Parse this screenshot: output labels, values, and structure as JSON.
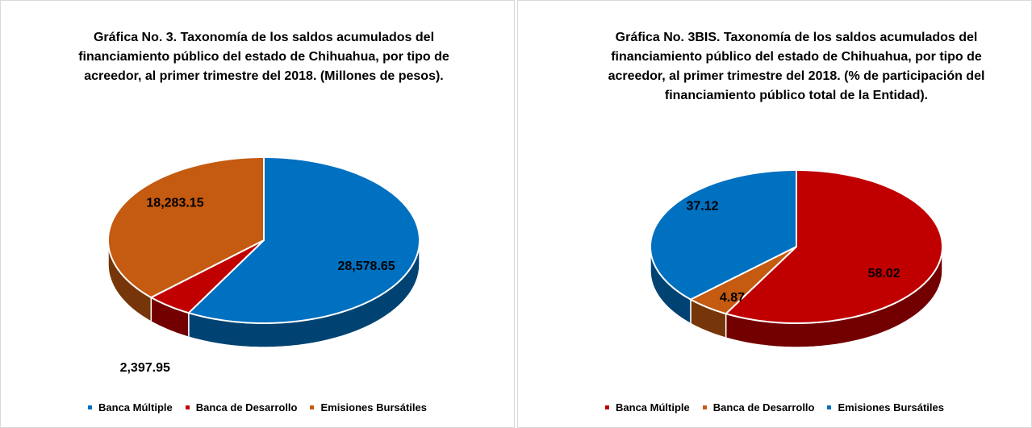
{
  "chart_data": [
    {
      "type": "pie",
      "title": "Gráfica No. 3. Taxonomía de los saldos acumulados del financiamiento público del estado de Chihuahua, por tipo de acreedor, al primer trimestre del 2018. (Millones de pesos).",
      "categories": [
        "Banca Múltiple",
        "Banca de Desarrollo",
        "Emisiones Bursátiles"
      ],
      "values": [
        28578.65,
        2397.95,
        18283.15
      ],
      "value_labels": [
        "28,578.65",
        "2,397.95",
        "18,283.15"
      ],
      "colors": [
        "#0070c0",
        "#c00000",
        "#c55a11"
      ],
      "legend": "bottom"
    },
    {
      "type": "pie",
      "title": "Gráfica No. 3BIS. Taxonomía de los saldos acumulados del financiamiento público del estado de Chihuahua, por tipo de acreedor, al primer trimestre del 2018. (% de participación del financiamiento público total de la Entidad).",
      "categories": [
        "Banca Múltiple",
        "Banca de Desarrollo",
        "Emisiones Bursátiles"
      ],
      "values": [
        58.02,
        4.87,
        37.12
      ],
      "colors": [
        "#c00000",
        "#c55a11",
        "#0070c0"
      ],
      "legend": "bottom"
    }
  ]
}
